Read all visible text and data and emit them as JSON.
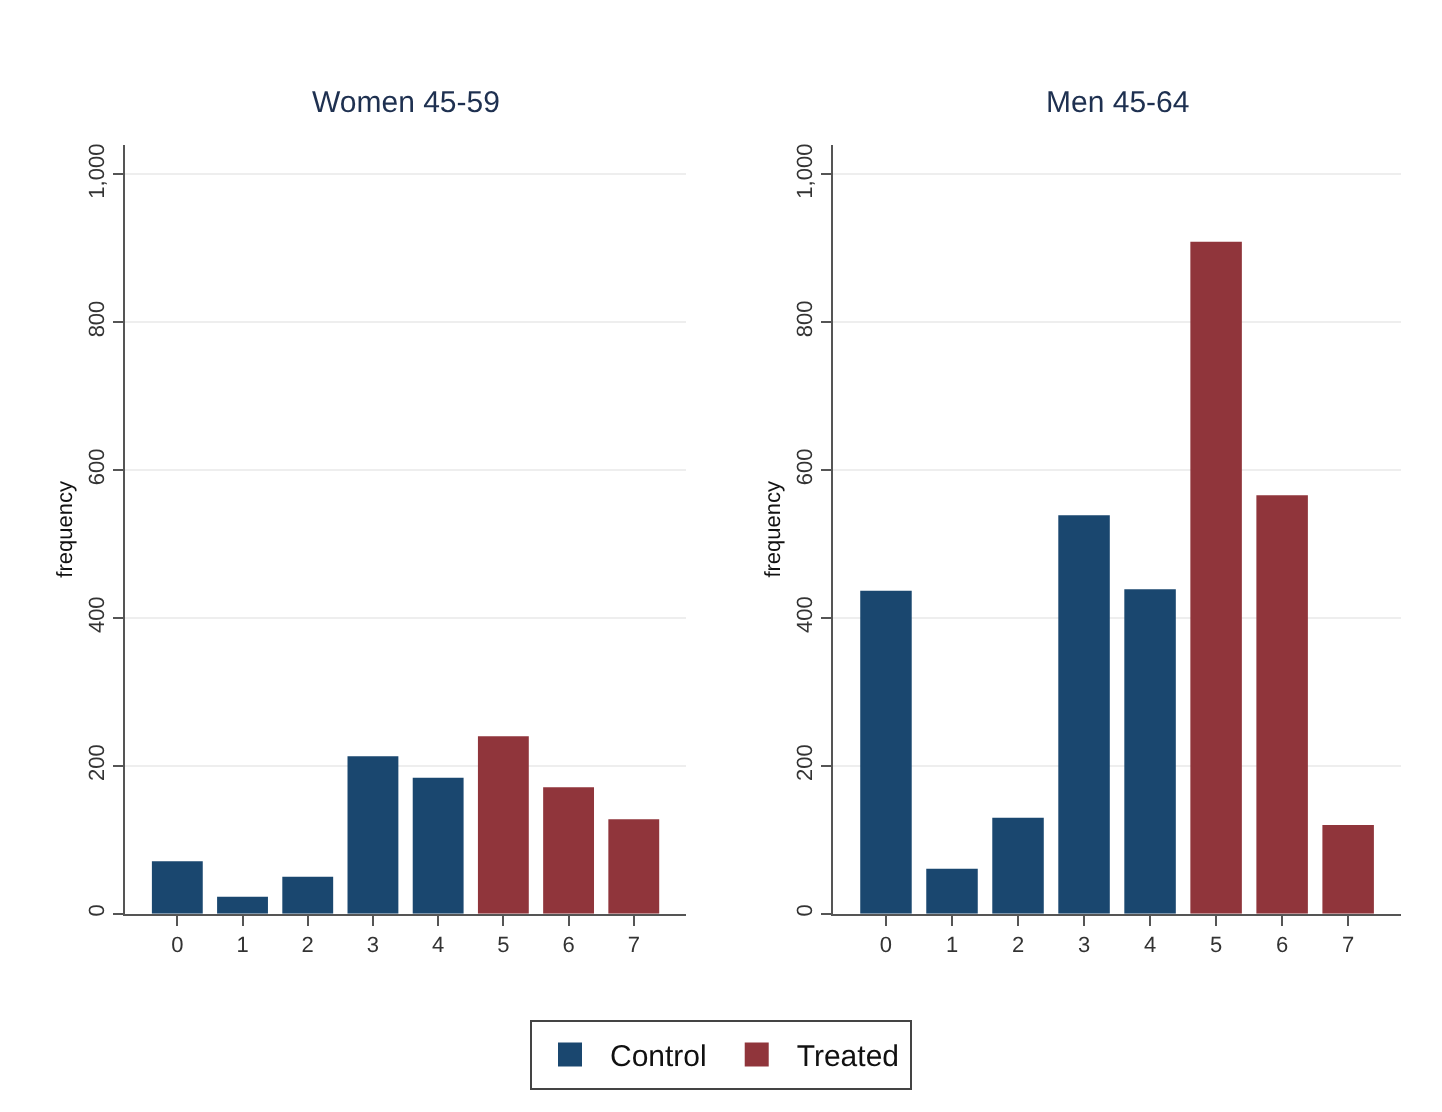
{
  "chart_data": [
    {
      "type": "bar",
      "title": "Women 45-59",
      "ylabel": "frequency",
      "categories": [
        "0",
        "1",
        "2",
        "3",
        "4",
        "5",
        "6",
        "7"
      ],
      "series": [
        {
          "color": "#1a476f",
          "values": [
            71,
            23,
            50,
            213,
            184,
            null,
            null,
            null
          ]
        },
        {
          "color": "#90353b",
          "values": [
            null,
            null,
            null,
            null,
            null,
            240,
            171,
            128
          ]
        }
      ],
      "ylim": [
        0,
        1040
      ],
      "yticks": [
        0,
        200,
        400,
        600,
        800,
        {
          "value": 1000,
          "label": "1,000"
        }
      ],
      "grid": "y"
    },
    {
      "type": "bar",
      "title": "Men 45-64",
      "ylabel": "frequency",
      "categories": [
        "0",
        "1",
        "2",
        "3",
        "4",
        "5",
        "6",
        "7"
      ],
      "series": [
        {
          "name": "Control",
          "color": "#1a476f",
          "values": [
            437,
            61,
            130,
            539,
            439,
            null,
            null,
            null
          ]
        },
        {
          "name": "Treated",
          "color": "#90353b",
          "values": [
            null,
            null,
            null,
            null,
            null,
            909,
            566,
            120
          ]
        }
      ],
      "ylim": [
        0,
        1040
      ],
      "yticks": [
        0,
        200,
        400,
        600,
        800,
        {
          "value": 1000,
          "label": "1,000"
        }
      ],
      "grid": "y",
      "legend": "bottom"
    }
  ]
}
